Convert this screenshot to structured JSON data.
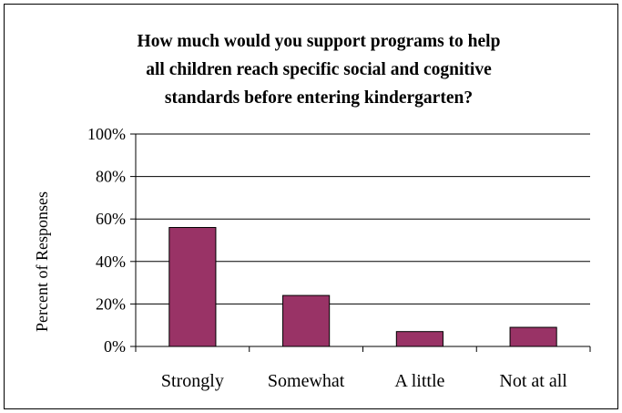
{
  "chart_data": {
    "type": "bar",
    "title_lines": [
      "How much would you support programs to help",
      "all children reach specific social and cognitive",
      "standards before entering kindergarten?"
    ],
    "xlabel": "",
    "ylabel": "Percent of Responses",
    "categories": [
      "Strongly",
      "Somewhat",
      "A little",
      "Not at all"
    ],
    "values": [
      56,
      24,
      7,
      9
    ],
    "ylim": [
      0,
      100
    ],
    "yticks": [
      0,
      20,
      40,
      60,
      80,
      100
    ],
    "ytick_labels": [
      "0%",
      "20%",
      "40%",
      "60%",
      "80%",
      "100%"
    ],
    "grid": true,
    "legend": "none",
    "bar_color": "#993366"
  }
}
